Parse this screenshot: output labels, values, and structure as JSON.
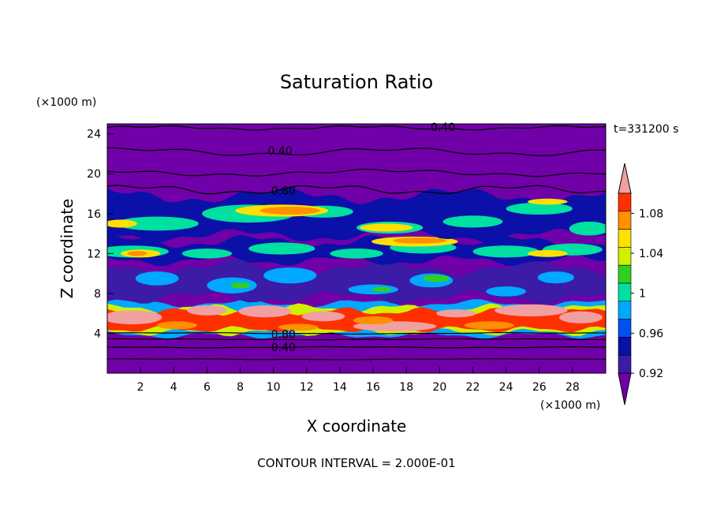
{
  "chart_data": {
    "type": "contour",
    "title": "Saturation Ratio",
    "xlabel": "X coordinate",
    "ylabel": "Z coordinate",
    "x_units": "(×1000 m)",
    "y_units": "(×1000 m)",
    "time_label": "t=331200 s",
    "footer": "CONTOUR INTERVAL = 2.000E-01",
    "xlim": [
      0,
      30
    ],
    "ylim": [
      0,
      25
    ],
    "x_ticks": [
      "2",
      "4",
      "6",
      "8",
      "10",
      "12",
      "14",
      "16",
      "18",
      "20",
      "22",
      "24",
      "26",
      "28"
    ],
    "y_ticks": [
      "4",
      "8",
      "12",
      "16",
      "20",
      "24"
    ],
    "colorbar": {
      "labels": [
        "0.92",
        "0.96",
        "1",
        "1.04",
        "1.08"
      ],
      "levels": [
        0.92,
        0.94,
        0.96,
        0.98,
        1.0,
        1.02,
        1.04,
        1.06,
        1.08,
        1.1
      ],
      "colors": [
        "#7000a8",
        "#3c1ba6",
        "#0a10a8",
        "#0050f0",
        "#00a8ff",
        "#00e0a0",
        "#30d020",
        "#d0f000",
        "#ffe000",
        "#ff9000",
        "#ff3000",
        "#f0a0a0"
      ]
    },
    "contour_labels": [
      {
        "text": "0.40",
        "x": 20.2,
        "z": 24.7
      },
      {
        "text": "0.40",
        "x": 10.4,
        "z": 22.3
      },
      {
        "text": "0.80",
        "x": 10.6,
        "z": 18.3
      },
      {
        "text": "0.80",
        "x": 10.6,
        "z": 3.9
      },
      {
        "text": "0.40",
        "x": 10.6,
        "z": 2.6
      }
    ],
    "bands": [
      {
        "z": 0.5,
        "kind": "background"
      },
      {
        "z": 3.9,
        "kind": "thin-cloud"
      },
      {
        "z": 5.5,
        "kind": "supersaturated"
      },
      {
        "z": 9.2,
        "kind": "near-saturation"
      },
      {
        "z": 12.3,
        "kind": "cloud-layer"
      },
      {
        "z": 15.8,
        "kind": "cloud-layer"
      },
      {
        "z": 18.2,
        "kind": "edge"
      },
      {
        "z": 22.0,
        "kind": "dry"
      }
    ]
  },
  "colors": {
    "background": "#7000a8",
    "text": "#000000"
  }
}
